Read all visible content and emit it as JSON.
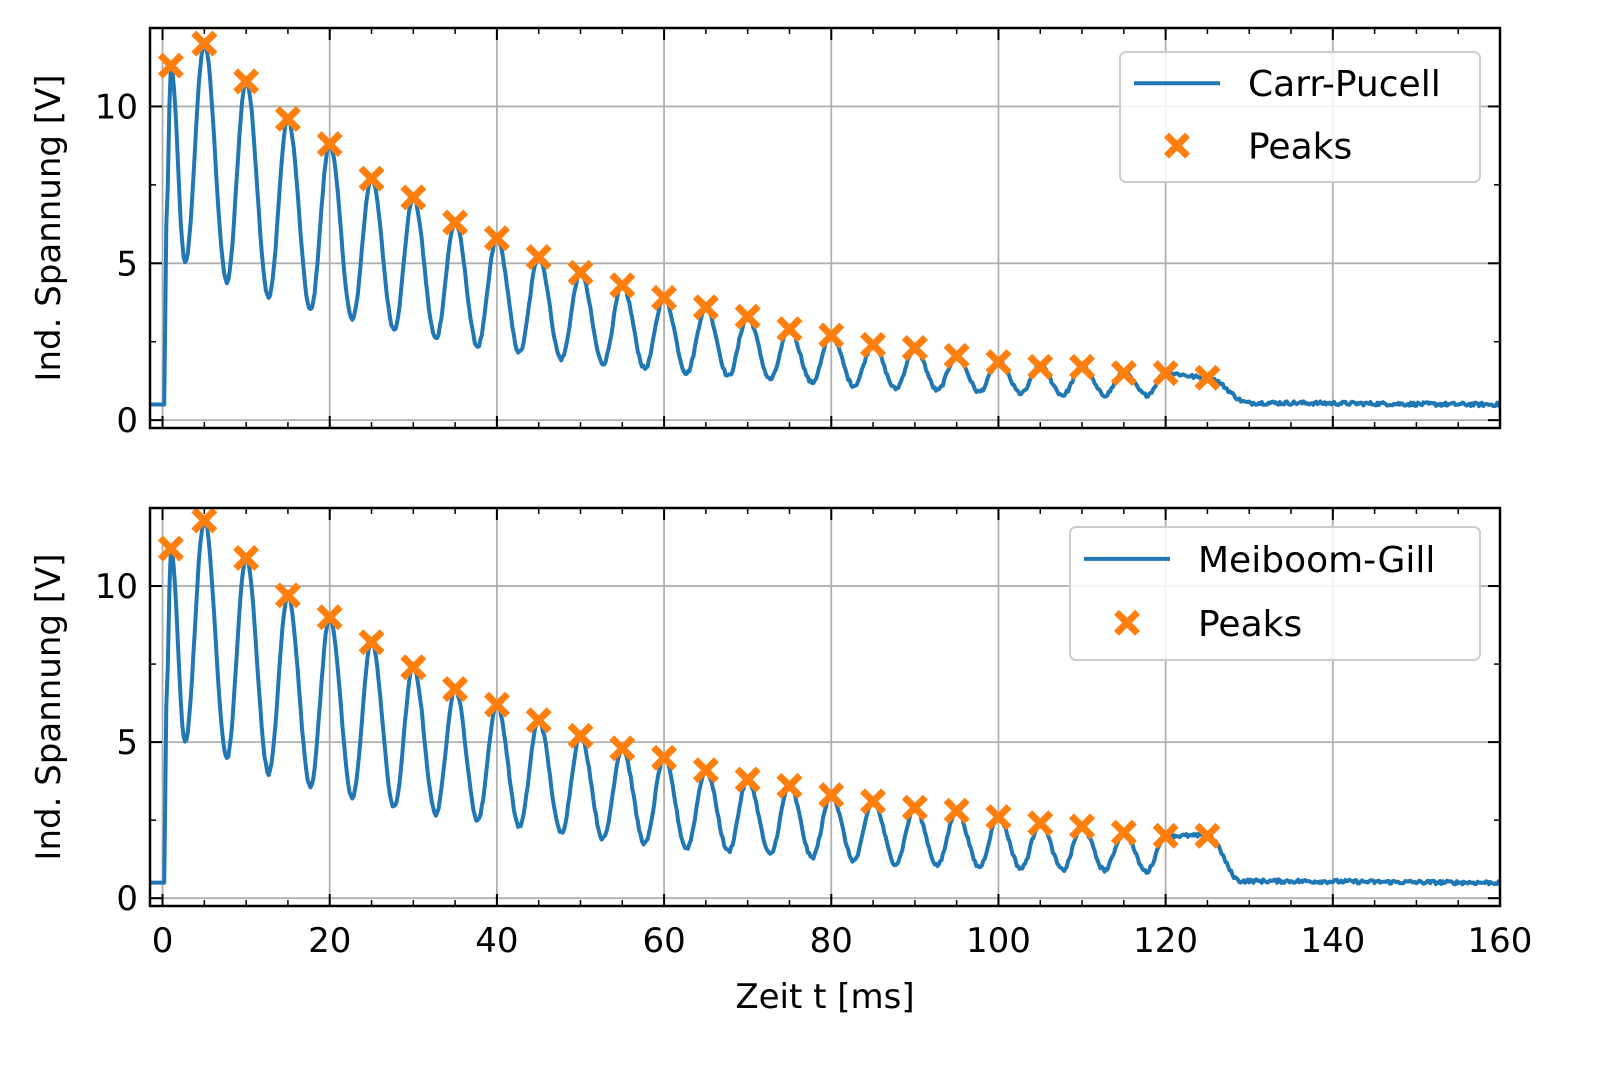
{
  "figure": {
    "xlabel": "Zeit t [ms]",
    "ylabel": "Ind. Spannung [V]"
  },
  "chart_data": [
    {
      "type": "line",
      "panel": "top",
      "xlim": [
        -1.5,
        160
      ],
      "ylim": [
        -0.25,
        12.5
      ],
      "xticks": [
        0,
        20,
        40,
        60,
        80,
        100,
        120,
        140,
        160
      ],
      "yticks": [
        0,
        5,
        10
      ],
      "grid": true,
      "show_xticklabels": false,
      "legend_position": "top-right",
      "series": [
        {
          "name": "Carr-Pucell",
          "kind": "line",
          "color": "#1f77b4"
        },
        {
          "name": "Peaks",
          "kind": "scatter",
          "marker": "X",
          "color": "#ff7f0e"
        }
      ],
      "peaks": {
        "x": [
          1,
          5,
          10,
          15,
          20,
          25,
          30,
          35,
          40,
          45,
          50,
          55,
          60,
          65,
          70,
          75,
          80,
          85,
          90,
          95,
          100,
          105,
          110,
          115,
          120,
          125
        ],
        "y": [
          11.3,
          12.0,
          10.8,
          9.6,
          8.8,
          7.7,
          7.1,
          6.3,
          5.8,
          5.2,
          4.7,
          4.3,
          3.9,
          3.6,
          3.3,
          2.9,
          2.7,
          2.4,
          2.3,
          2.05,
          1.85,
          1.7,
          1.7,
          1.5,
          1.5,
          1.35
        ]
      },
      "troughs": [
        5.0,
        4.4,
        3.9,
        3.5,
        3.2,
        2.9,
        2.6,
        2.35,
        2.15,
        1.95,
        1.8,
        1.65,
        1.5,
        1.4,
        1.3,
        1.2,
        1.1,
        1.0,
        0.95,
        0.9,
        0.85,
        0.8,
        0.8,
        0.8
      ],
      "baseline": 0.5,
      "decay_end_x": 130
    },
    {
      "type": "line",
      "panel": "bottom",
      "xlim": [
        -1.5,
        160
      ],
      "ylim": [
        -0.25,
        12.5
      ],
      "xticks": [
        0,
        20,
        40,
        60,
        80,
        100,
        120,
        140,
        160
      ],
      "yticks": [
        0,
        5,
        10
      ],
      "xticklabels": [
        "0",
        "20",
        "40",
        "60",
        "80",
        "100",
        "120",
        "140",
        "160"
      ],
      "grid": true,
      "show_xticklabels": true,
      "legend_position": "top-right",
      "series": [
        {
          "name": "Meiboom-Gill",
          "kind": "line",
          "color": "#1f77b4"
        },
        {
          "name": "Peaks",
          "kind": "scatter",
          "marker": "X",
          "color": "#ff7f0e"
        }
      ],
      "peaks": {
        "x": [
          1,
          5,
          10,
          15,
          20,
          25,
          30,
          35,
          40,
          45,
          50,
          55,
          60,
          65,
          70,
          75,
          80,
          85,
          90,
          95,
          100,
          105,
          110,
          115,
          120,
          125
        ],
        "y": [
          11.2,
          12.1,
          10.9,
          9.7,
          9.0,
          8.2,
          7.4,
          6.7,
          6.2,
          5.7,
          5.2,
          4.8,
          4.5,
          4.1,
          3.8,
          3.6,
          3.3,
          3.1,
          2.9,
          2.8,
          2.6,
          2.4,
          2.3,
          2.1,
          2.0,
          2.0
        ]
      },
      "troughs": [
        5.0,
        4.5,
        4.0,
        3.6,
        3.2,
        2.9,
        2.7,
        2.5,
        2.3,
        2.1,
        1.9,
        1.75,
        1.6,
        1.5,
        1.4,
        1.3,
        1.2,
        1.1,
        1.05,
        1.0,
        0.95,
        0.9,
        0.9,
        0.85
      ],
      "baseline": 0.5,
      "decay_end_x": 129
    }
  ]
}
